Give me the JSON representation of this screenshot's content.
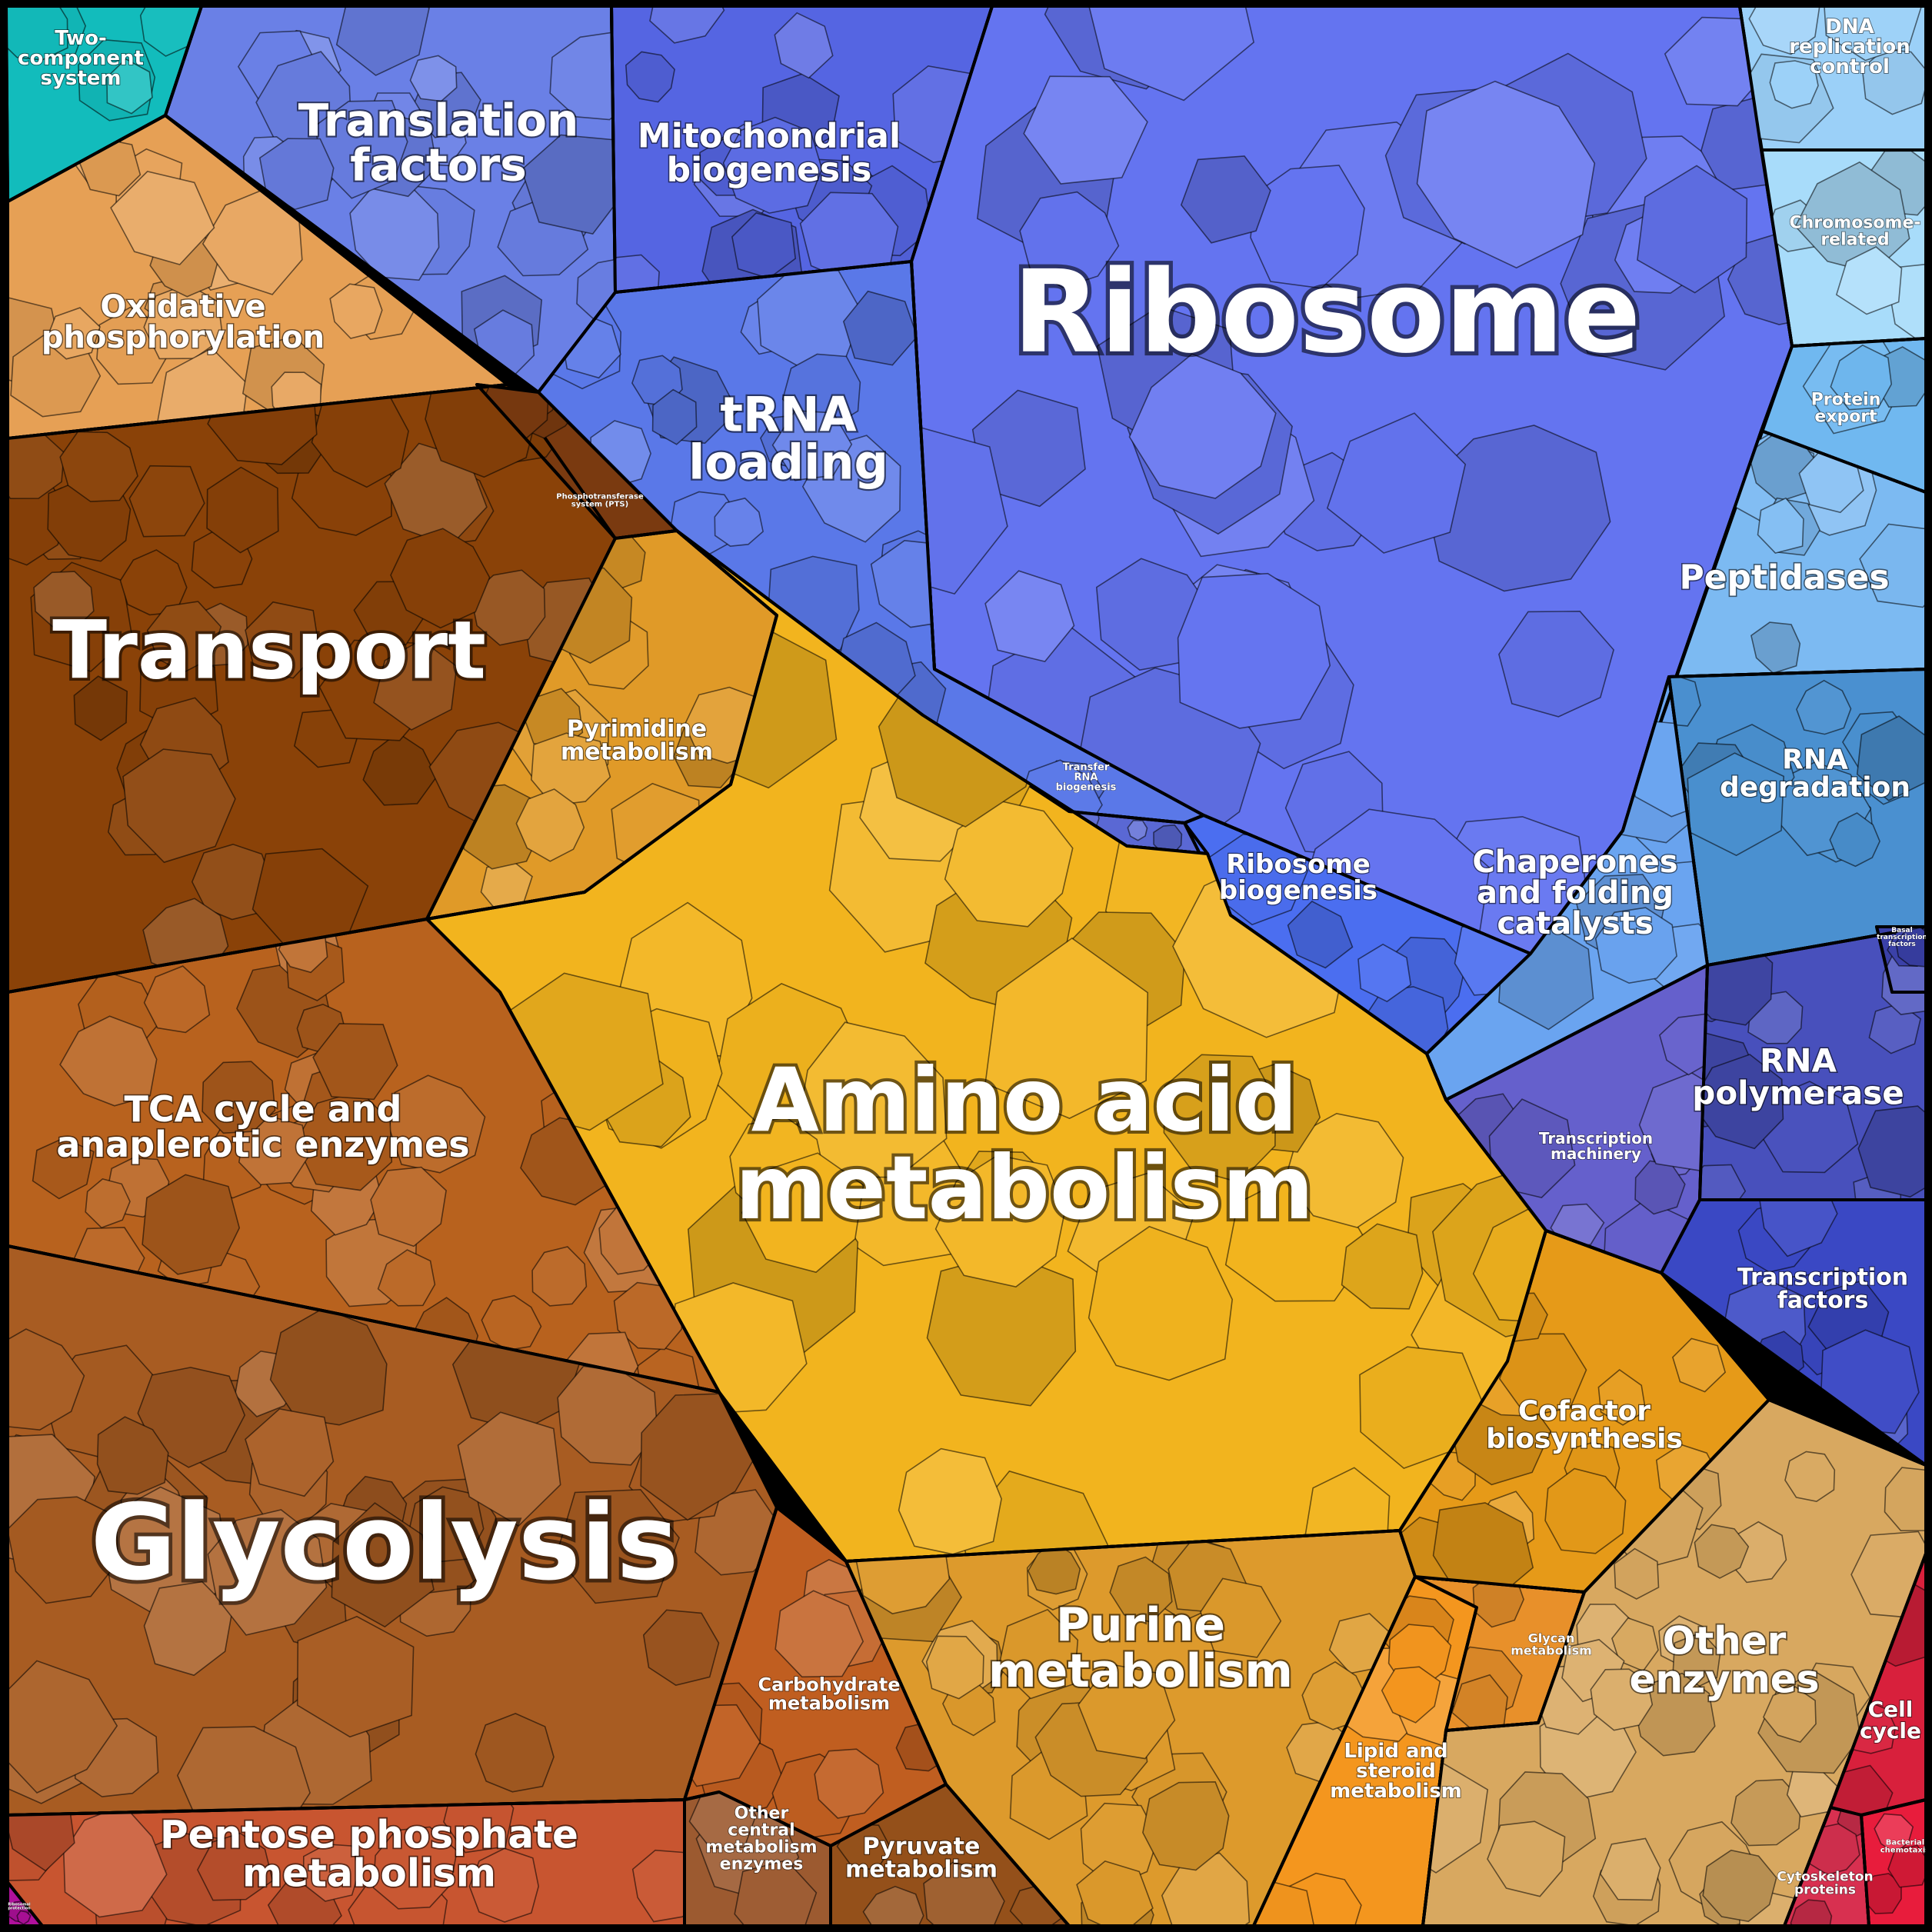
{
  "image": {
    "background_color": "#000000"
  },
  "regions": [
    {
      "id": "two-component-system",
      "lines": [
        "Two-",
        "component",
        "system"
      ],
      "color": "#12bcbc"
    },
    {
      "id": "translation-factors",
      "lines": [
        "Translation",
        "factors"
      ],
      "color": "#6a80e6"
    },
    {
      "id": "mitochondrial-biogenesis",
      "lines": [
        "Mitochondrial",
        "biogenesis"
      ],
      "color": "#5565e2"
    },
    {
      "id": "ribosome",
      "lines": [
        "Ribosome"
      ],
      "color": "#6474f0"
    },
    {
      "id": "trna-loading",
      "lines": [
        "tRNA",
        "loading"
      ],
      "color": "#5a78e8"
    },
    {
      "id": "transfer-rna-biogenesis",
      "lines": [
        "Transfer",
        "RNA",
        "biogenesis"
      ],
      "color": "#5a68d4"
    },
    {
      "id": "ribosome-biogenesis",
      "lines": [
        "Ribosome",
        "biogenesis"
      ],
      "color": "#4b6ef0"
    },
    {
      "id": "dna-replication-control",
      "lines": [
        "DNA",
        "replication",
        "control"
      ],
      "color": "#9bd0f8"
    },
    {
      "id": "chromosome-related",
      "lines": [
        "Chromosome-",
        "related"
      ],
      "color": "#a8dcfa"
    },
    {
      "id": "protein-export",
      "lines": [
        "Protein",
        "export"
      ],
      "color": "#70b8f0"
    },
    {
      "id": "peptidases",
      "lines": [
        "Peptidases"
      ],
      "color": "#7cbaf2"
    },
    {
      "id": "rna-degradation",
      "lines": [
        "RNA",
        "degradation"
      ],
      "color": "#4a90d0"
    },
    {
      "id": "chaperones",
      "lines": [
        "Chaperones",
        "and folding",
        "catalysts"
      ],
      "color": "#6aa4f0"
    },
    {
      "id": "rna-polymerase",
      "lines": [
        "RNA",
        "polymerase"
      ],
      "color": "#4850bc"
    },
    {
      "id": "transcription-machinery",
      "lines": [
        "Transcription",
        "machinery"
      ],
      "color": "#6560cc"
    },
    {
      "id": "transcription-factors",
      "lines": [
        "Transcription",
        "factors"
      ],
      "color": "#3a48c4"
    },
    {
      "id": "basal-transcription-factors",
      "lines": [
        "Basal",
        "transcription",
        "factors"
      ],
      "color": "#3a40a8"
    },
    {
      "id": "oxidative-phosphorylation",
      "lines": [
        "Oxidative",
        "phosphorylation"
      ],
      "color": "#e6a055"
    },
    {
      "id": "transport",
      "lines": [
        "Transport"
      ],
      "color": "#8a4208"
    },
    {
      "id": "phosphotransferase-system",
      "lines": [
        "Phosphotransferase",
        "system (PTS)"
      ],
      "color": "#7a3a10"
    },
    {
      "id": "pyrimidine-metabolism",
      "lines": [
        "Pyrimidine",
        "metabolism"
      ],
      "color": "#e09a28"
    },
    {
      "id": "amino-acid-metabolism",
      "lines": [
        "Amino acid",
        "metabolism"
      ],
      "color": "#f2b41e"
    },
    {
      "id": "tca-cycle",
      "lines": [
        "TCA cycle and",
        "anaplerotic enzymes"
      ],
      "color": "#b8621e"
    },
    {
      "id": "glycolysis",
      "lines": [
        "Glycolysis"
      ],
      "color": "#a85c22"
    },
    {
      "id": "pentose-phosphate-metabolism",
      "lines": [
        "Pentose phosphate",
        "metabolism"
      ],
      "color": "#c85530"
    },
    {
      "id": "carbohydrate-metabolism",
      "lines": [
        "Carbohydrate",
        "metabolism"
      ],
      "color": "#c05e20"
    },
    {
      "id": "other-central-metabolism",
      "lines": [
        "Other",
        "central",
        "metabolism",
        "enzymes"
      ],
      "color": "#9c5a30"
    },
    {
      "id": "pyruvate-metabolism",
      "lines": [
        "Pyruvate",
        "metabolism"
      ],
      "color": "#94501a"
    },
    {
      "id": "purine-metabolism",
      "lines": [
        "Purine",
        "metabolism"
      ],
      "color": "#dd9a2c"
    },
    {
      "id": "lipid-steroid-metabolism",
      "lines": [
        "Lipid and",
        "steroid",
        "metabolism"
      ],
      "color": "#f4961e"
    },
    {
      "id": "glycan-metabolism",
      "lines": [
        "Glycan",
        "metabolism"
      ],
      "color": "#e8902a"
    },
    {
      "id": "cofactor-biosynthesis",
      "lines": [
        "Cofactor",
        "biosynthesis"
      ],
      "color": "#e69a18"
    },
    {
      "id": "other-enzymes",
      "lines": [
        "Other",
        "enzymes"
      ],
      "color": "#d8a860"
    },
    {
      "id": "cell-cycle",
      "lines": [
        "Cell",
        "cycle"
      ],
      "color": "#d8203c"
    },
    {
      "id": "cytoskeleton-proteins",
      "lines": [
        "Cytoskeleton",
        "proteins"
      ],
      "color": "#d83050"
    },
    {
      "id": "bacterial-chemotaxis",
      "lines": [
        "Bacterial",
        "chemotaxis"
      ],
      "color": "#e81c3c"
    },
    {
      "id": "misc-corner",
      "lines": [
        "Ribosomal",
        "protection"
      ],
      "color": "#b0109c"
    }
  ]
}
